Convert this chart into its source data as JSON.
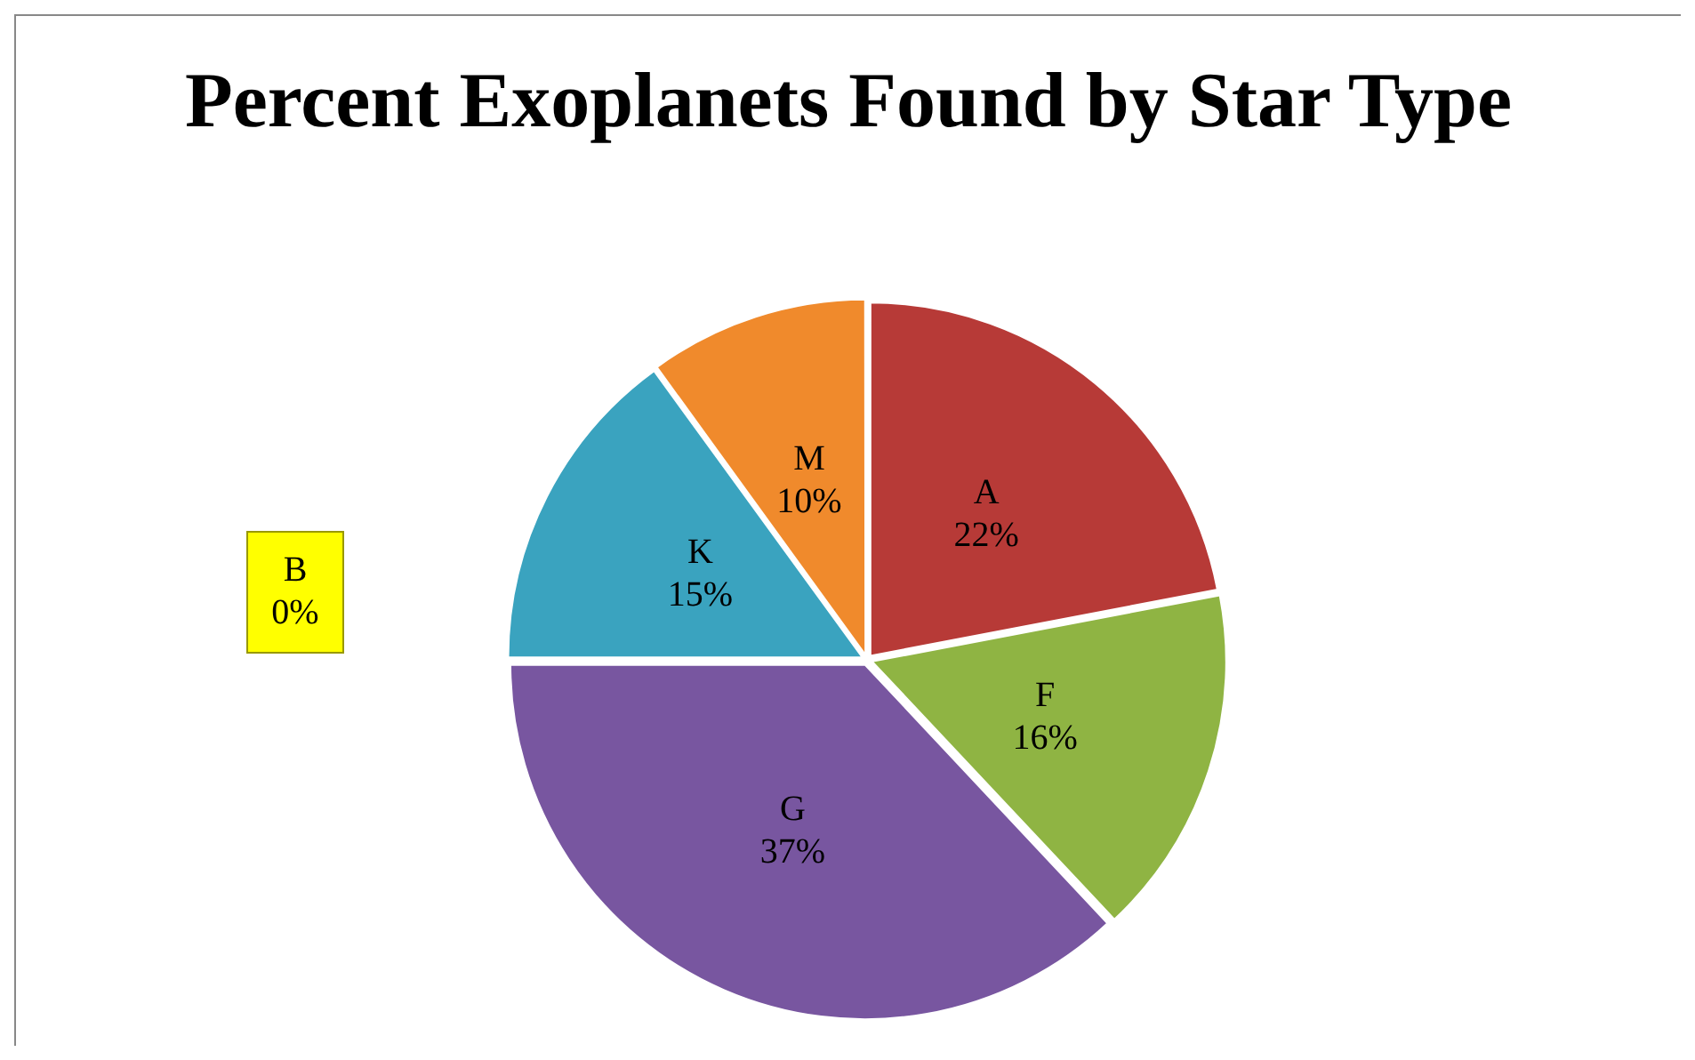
{
  "chart_data": {
    "type": "pie",
    "title": "Percent Exoplanets Found by Star Type",
    "categories": [
      "A",
      "B",
      "F",
      "G",
      "K",
      "M"
    ],
    "values": [
      22,
      0,
      16,
      37,
      15,
      10
    ],
    "colors": [
      "#b73a37",
      "#ffff00",
      "#8fb443",
      "#7856a0",
      "#3aa3bf",
      "#f08a2c"
    ],
    "value_labels": [
      "22%",
      "0%",
      "16%",
      "37%",
      "15%",
      "10%"
    ],
    "legend": false
  }
}
